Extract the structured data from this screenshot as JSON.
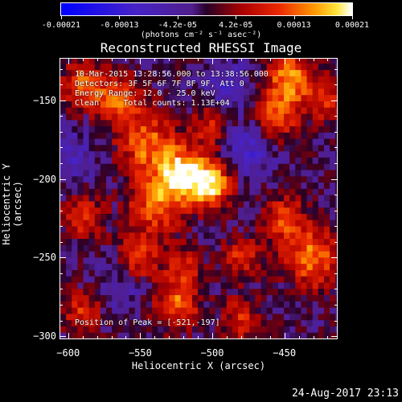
{
  "colorbar": {
    "min": -0.00021,
    "max": 0.00021,
    "tick_labels": [
      "-0.00021",
      "-0.00013",
      "-4.2e-05",
      "4.2e-05",
      "0.00013",
      "0.00021"
    ],
    "units": "(photons cm⁻² s⁻¹ asec⁻²)"
  },
  "title": "Reconstructed RHESSI Image",
  "info": {
    "time_range": "10-Mar-2015 13:28:56.000 to 13:38:56.000",
    "detectors": "Detectors: 3F 5F 6F 7F 8F 9F, Att 0",
    "energy": "Energy Range: 12.0 - 25.0 keV",
    "clean": "Clean     Total counts: 1.13E+04",
    "peak": "Position of Peak = [-521,-197]"
  },
  "footer": {
    "timestamp": "24-Aug-2017 23:13"
  },
  "chart_data": {
    "type": "heatmap",
    "title": "Reconstructed RHESSI Image",
    "xlabel": "Heliocentric X (arcsec)",
    "ylabel": "Heliocentric Y (arcsec)",
    "xlim": [
      -606,
      -413
    ],
    "ylim": [
      -302,
      -123
    ],
    "xticks": [
      -600,
      -550,
      -500,
      -450
    ],
    "yticks": [
      -150,
      -200,
      -250,
      -300
    ],
    "xtick_labels": [
      "−600",
      "−550",
      "−500",
      "−450"
    ],
    "ytick_labels": [
      "−150",
      "−200",
      "−250",
      "−300"
    ],
    "value_range": [
      -0.00021,
      0.00021
    ],
    "peak": {
      "x": -521,
      "y": -197
    },
    "blobs": [
      {
        "x": -521,
        "y": -197,
        "amp": 1.0,
        "r": 12
      },
      {
        "x": -500,
        "y": -203,
        "amp": 0.9,
        "r": 10
      },
      {
        "x": -540,
        "y": -217,
        "amp": 0.6,
        "r": 14
      },
      {
        "x": -545,
        "y": -177,
        "amp": 0.65,
        "r": 14
      },
      {
        "x": -590,
        "y": -140,
        "amp": 0.7,
        "r": 10
      },
      {
        "x": -565,
        "y": -150,
        "amp": 0.65,
        "r": 11
      },
      {
        "x": -445,
        "y": -135,
        "amp": 0.75,
        "r": 12
      },
      {
        "x": -455,
        "y": -160,
        "amp": 0.6,
        "r": 11
      },
      {
        "x": -420,
        "y": -150,
        "amp": 0.5,
        "r": 9
      },
      {
        "x": -430,
        "y": -250,
        "amp": 0.7,
        "r": 14
      },
      {
        "x": -450,
        "y": -225,
        "amp": 0.55,
        "r": 10
      },
      {
        "x": -552,
        "y": -250,
        "amp": 0.55,
        "r": 10
      },
      {
        "x": -525,
        "y": -280,
        "amp": 0.65,
        "r": 11
      },
      {
        "x": -520,
        "y": -256,
        "amp": 0.45,
        "r": 9
      },
      {
        "x": -590,
        "y": -225,
        "amp": 0.5,
        "r": 10
      },
      {
        "x": -590,
        "y": -285,
        "amp": 0.5,
        "r": 10
      },
      {
        "x": -480,
        "y": -290,
        "amp": 0.45,
        "r": 10
      },
      {
        "x": -480,
        "y": -250,
        "amp": 0.5,
        "r": 9
      },
      {
        "x": -500,
        "y": -165,
        "amp": 0.5,
        "r": 9
      },
      {
        "x": -475,
        "y": -180,
        "amp": -0.4,
        "r": 12
      },
      {
        "x": -490,
        "y": -140,
        "amp": -0.35,
        "r": 12
      },
      {
        "x": -600,
        "y": -185,
        "amp": -0.3,
        "r": 12
      },
      {
        "x": -565,
        "y": -270,
        "amp": -0.25,
        "r": 12
      }
    ]
  }
}
